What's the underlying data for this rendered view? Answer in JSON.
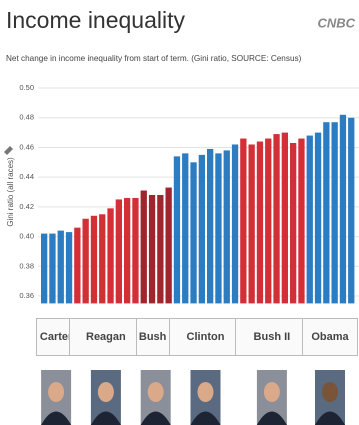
{
  "chart_data": {
    "type": "bar",
    "title": "Income inequality",
    "source_logo": "CNBC",
    "subtitle": "Net change in income inequality from start of term. (Gini ratio, SOURCE: Census)",
    "y_label": "Gini ratio (all races)",
    "ylim": [
      0.355,
      0.504
    ],
    "yticks": [
      0.36,
      0.38,
      {
        "value": 0.4,
        "label": "0.40"
      },
      0.42,
      0.44,
      0.46,
      0.48,
      {
        "value": 0.5,
        "label": "0.50"
      }
    ],
    "grid": true,
    "series": [
      {
        "name": "Carter",
        "color": "#2b7cc0",
        "values": [
          0.402,
          0.402,
          0.404,
          0.403
        ]
      },
      {
        "name": "Reagan",
        "color": "#d32f37",
        "values": [
          0.406,
          0.412,
          0.414,
          0.415,
          0.419,
          0.425,
          0.426,
          0.426
        ]
      },
      {
        "name": "Bush I",
        "color": "#a0262e",
        "values": [
          0.431,
          0.428,
          0.428,
          0.433
        ]
      },
      {
        "name": "Clinton",
        "color": "#2b7cc0",
        "values": [
          0.454,
          0.456,
          0.45,
          0.455,
          0.459,
          0.456,
          0.458,
          0.462
        ]
      },
      {
        "name": "Bush II",
        "color": "#d32f37",
        "values": [
          0.466,
          0.462,
          0.464,
          0.466,
          0.469,
          0.47,
          0.463,
          0.466
        ]
      },
      {
        "name": "Obama",
        "color": "#2b7cc0",
        "values": [
          0.468,
          0.47,
          0.477,
          0.477,
          0.482,
          0.48
        ]
      }
    ]
  }
}
